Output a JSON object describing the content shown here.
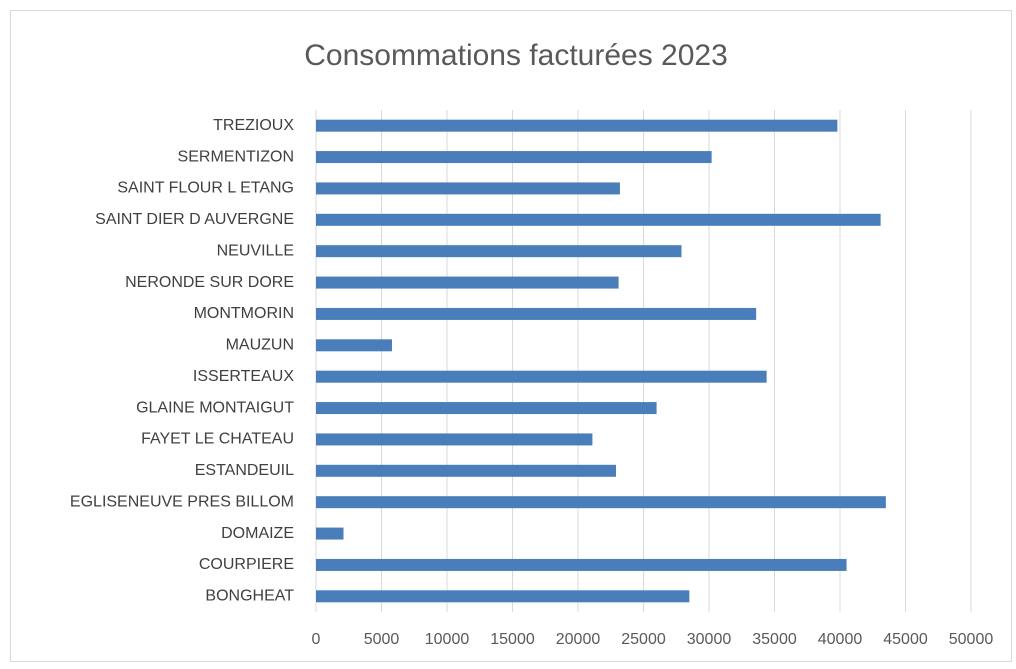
{
  "chart_data": {
    "type": "bar",
    "orientation": "horizontal",
    "title": "Consommations facturées 2023",
    "categories": [
      "TREZIOUX",
      "SERMENTIZON",
      "SAINT FLOUR L ETANG",
      "SAINT DIER D AUVERGNE",
      "NEUVILLE",
      "NERONDE SUR DORE",
      "MONTMORIN",
      "MAUZUN",
      "ISSERTEAUX",
      "GLAINE MONTAIGUT",
      "FAYET LE CHATEAU",
      "ESTANDEUIL",
      "EGLISENEUVE PRES BILLOM",
      "DOMAIZE",
      "COURPIERE",
      "BONGHEAT"
    ],
    "values": [
      39800,
      30200,
      23200,
      43100,
      27900,
      23100,
      33600,
      5800,
      34400,
      26000,
      21100,
      22900,
      43500,
      2100,
      40500,
      28500
    ],
    "color": "#4a7ebb",
    "xlim": [
      0,
      50000
    ],
    "xticks": [
      0,
      5000,
      10000,
      15000,
      20000,
      25000,
      30000,
      35000,
      40000,
      45000,
      50000
    ],
    "grid": true
  }
}
